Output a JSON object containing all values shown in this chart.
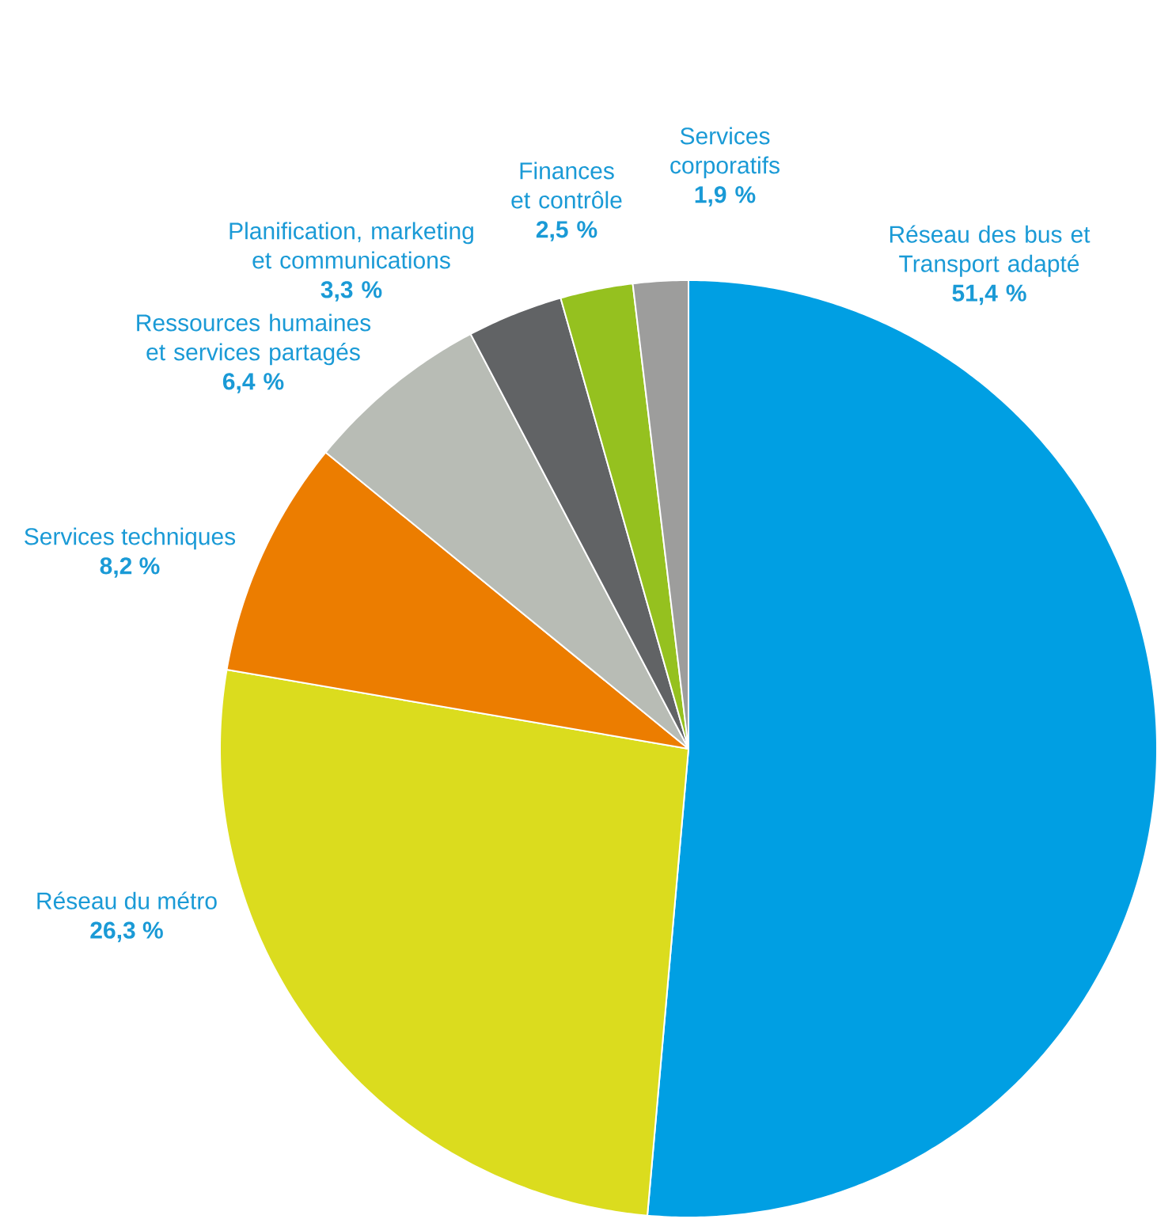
{
  "chart_data": {
    "type": "pie",
    "categories": [
      "Réseau des bus et Transport adapté",
      "Réseau du métro",
      "Services techniques",
      "Ressources humaines et services partagés",
      "Planification, marketing et communications",
      "Finances et contrôle",
      "Services corporatifs"
    ],
    "values": [
      51.4,
      26.3,
      8.2,
      6.4,
      3.3,
      2.5,
      1.9
    ],
    "value_labels": [
      "51,4 %",
      "26,3 %",
      "8,2 %",
      "6,4 %",
      "3,3 %",
      "2,5 %",
      "1,9 %"
    ],
    "colors": [
      "#009fe3",
      "#dbdc1e",
      "#ec7d00",
      "#b8bcb5",
      "#616365",
      "#95c11f",
      "#9d9d9c"
    ]
  }
}
